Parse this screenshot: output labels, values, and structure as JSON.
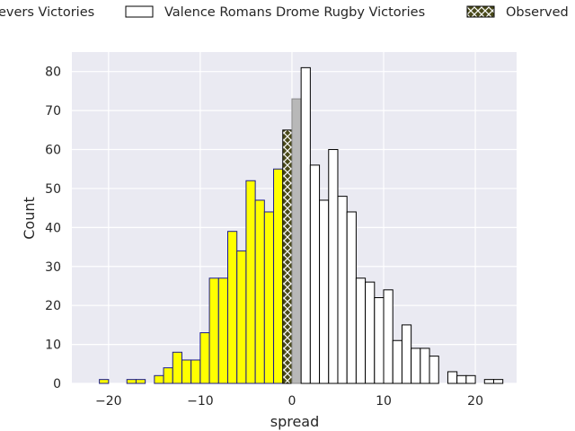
{
  "chart_data": {
    "type": "bar",
    "xlabel": "spread",
    "ylabel": "Count",
    "xlim": [
      -24,
      24.5
    ],
    "ylim": [
      0,
      85
    ],
    "x_ticks": [
      -20,
      -10,
      0,
      10,
      20
    ],
    "x_tick_labels": [
      "−20",
      "−10",
      "0",
      "10",
      "20"
    ],
    "y_ticks": [
      0,
      10,
      20,
      30,
      40,
      50,
      60,
      70,
      80
    ],
    "y_tick_labels": [
      "0",
      "10",
      "20",
      "30",
      "40",
      "50",
      "60",
      "70",
      "80"
    ],
    "grid": true,
    "legend_position": "top",
    "legend": [
      {
        "label": "evers Victories",
        "color": "#ffff00"
      },
      {
        "label": "Valence Romans Drome Rugby Victories",
        "color": "#ffffff"
      },
      {
        "label": "Observed",
        "color": "#000000"
      }
    ],
    "colors": {
      "home": "#ffff00",
      "away": "#ffffff",
      "draw": "#b8b8b8",
      "observed": "#4a4a1a",
      "background": "#eaeaf2",
      "grid": "#ffffff"
    },
    "series": [
      {
        "name": "evers Victories",
        "bins": [
          {
            "x": -21,
            "count": 1
          },
          {
            "x": -18,
            "count": 1
          },
          {
            "x": -17,
            "count": 1
          },
          {
            "x": -15,
            "count": 2
          },
          {
            "x": -14,
            "count": 4
          },
          {
            "x": -13,
            "count": 8
          },
          {
            "x": -12,
            "count": 6
          },
          {
            "x": -11,
            "count": 6
          },
          {
            "x": -10,
            "count": 13
          },
          {
            "x": -9,
            "count": 27
          },
          {
            "x": -8,
            "count": 27
          },
          {
            "x": -7,
            "count": 39
          },
          {
            "x": -6,
            "count": 34
          },
          {
            "x": -5,
            "count": 52
          },
          {
            "x": -4,
            "count": 47
          },
          {
            "x": -3,
            "count": 44
          },
          {
            "x": -2,
            "count": 55
          }
        ]
      },
      {
        "name": "Observed",
        "bins": [
          {
            "x": -1,
            "count": 65
          }
        ]
      },
      {
        "name": "",
        "bins": [
          {
            "x": 0,
            "count": 73
          }
        ]
      },
      {
        "name": "Valence Romans Drome Rugby Victories",
        "bins": [
          {
            "x": 1,
            "count": 81
          },
          {
            "x": 2,
            "count": 56
          },
          {
            "x": 3,
            "count": 47
          },
          {
            "x": 4,
            "count": 60
          },
          {
            "x": 5,
            "count": 48
          },
          {
            "x": 6,
            "count": 44
          },
          {
            "x": 7,
            "count": 27
          },
          {
            "x": 8,
            "count": 26
          },
          {
            "x": 9,
            "count": 22
          },
          {
            "x": 10,
            "count": 24
          },
          {
            "x": 11,
            "count": 11
          },
          {
            "x": 12,
            "count": 15
          },
          {
            "x": 13,
            "count": 9
          },
          {
            "x": 14,
            "count": 9
          },
          {
            "x": 15,
            "count": 7
          },
          {
            "x": 17,
            "count": 3
          },
          {
            "x": 18,
            "count": 2
          },
          {
            "x": 19,
            "count": 2
          },
          {
            "x": 21,
            "count": 1
          },
          {
            "x": 22,
            "count": 1
          }
        ]
      }
    ]
  }
}
